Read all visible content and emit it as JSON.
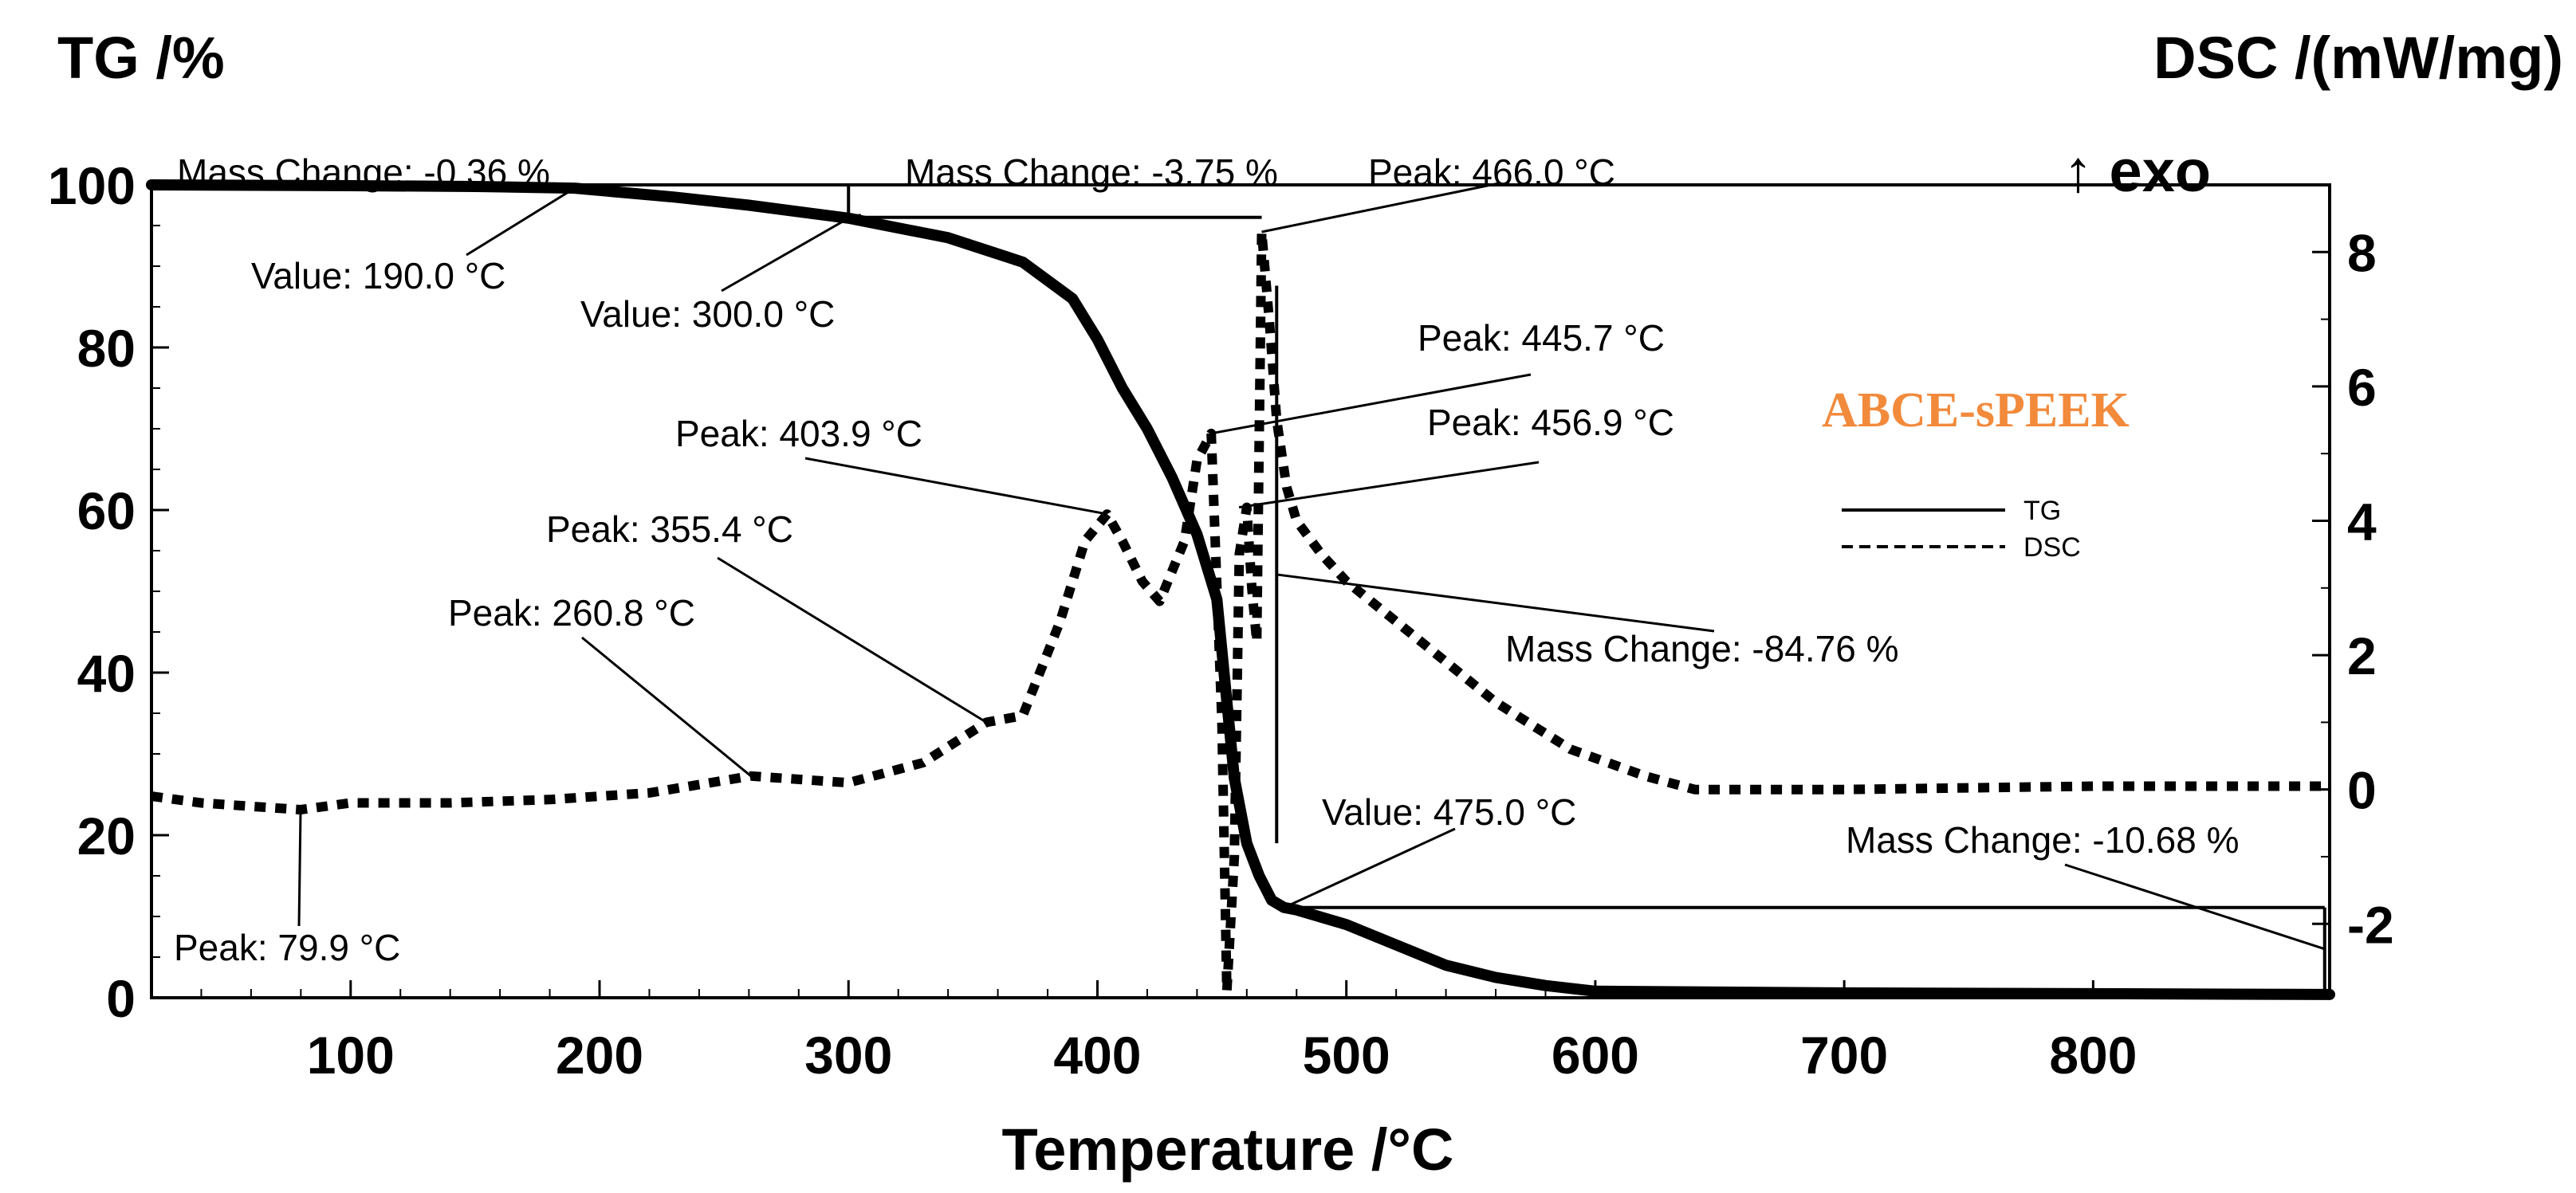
{
  "chart_data": {
    "type": "line",
    "y_left_label": "TG /%",
    "y_right_label": "DSC /(mW/mg)",
    "x_label": "Temperature /°C",
    "exo_label": "↑ exo",
    "sample_label": "ABCE-sPEEK",
    "xlim": [
      20,
      895
    ],
    "ylim_left": [
      0,
      100
    ],
    "ylim_right": [
      -3.1,
      9
    ],
    "x_ticks": [
      100,
      200,
      300,
      400,
      500,
      600,
      700,
      800
    ],
    "y_left_ticks": [
      0,
      20,
      40,
      60,
      80,
      100
    ],
    "y_right_ticks": [
      -2,
      0,
      2,
      4,
      6,
      8
    ],
    "legend": [
      {
        "name": "TG",
        "style": "solid"
      },
      {
        "name": "DSC",
        "style": "dashed"
      }
    ],
    "series": [
      {
        "name": "TG",
        "axis": "left",
        "x": [
          20,
          100,
          150,
          190,
          230,
          260,
          300,
          340,
          370,
          390,
          400,
          410,
          420,
          430,
          440,
          448,
          455,
          460,
          465,
          470,
          475,
          480,
          500,
          520,
          540,
          560,
          580,
          600,
          700,
          800,
          895
        ],
        "y": [
          100,
          99.9,
          99.8,
          99.6,
          98.5,
          97.5,
          95.9,
          93.5,
          90.5,
          86,
          81,
          75,
          70,
          64,
          57,
          49,
          27,
          19,
          15,
          12,
          11.1,
          10.8,
          9,
          6.5,
          4,
          2.5,
          1.5,
          0.8,
          0.6,
          0.5,
          0.4
        ]
      },
      {
        "name": "DSC",
        "axis": "right",
        "x": [
          20,
          40,
          60,
          79.9,
          100,
          140,
          180,
          220,
          260.8,
          300,
          330,
          355.4,
          370,
          385,
          395,
          403.9,
          410,
          418,
          425,
          435,
          440,
          445.7,
          450,
          452,
          455,
          457,
          460,
          462,
          464,
          466,
          469,
          472,
          476,
          480,
          490,
          500,
          530,
          560,
          590,
          620,
          640,
          700,
          800,
          895
        ],
        "y": [
          -0.1,
          -0.2,
          -0.25,
          -0.3,
          -0.2,
          -0.2,
          -0.15,
          -0.05,
          0.2,
          0.1,
          0.4,
          1,
          1.1,
          2.5,
          3.7,
          4.1,
          3.7,
          3.1,
          2.8,
          3.7,
          4.9,
          5.3,
          1,
          -3,
          -1,
          3.5,
          4.2,
          3,
          2.2,
          8.3,
          7,
          5.5,
          4.5,
          4,
          3.5,
          3.1,
          2.2,
          1.3,
          0.6,
          0.2,
          0,
          0,
          0.05,
          0.05
        ]
      }
    ],
    "annotations": [
      {
        "text": "Mass Change: -0.36 %"
      },
      {
        "text": "Value: 190.0 °C"
      },
      {
        "text": "Mass Change: -3.75 %"
      },
      {
        "text": "Value: 300.0 °C"
      },
      {
        "text": "Peak: 466.0 °C"
      },
      {
        "text": "Peak: 445.7 °C"
      },
      {
        "text": "Peak: 456.9 °C"
      },
      {
        "text": "Peak: 403.9 °C"
      },
      {
        "text": "Peak: 355.4 °C"
      },
      {
        "text": "Peak: 260.8 °C"
      },
      {
        "text": "Mass Change: -84.76 %"
      },
      {
        "text": "Value: 475.0 °C"
      },
      {
        "text": "Mass Change: -10.68 %"
      },
      {
        "text": "Peak: 79.9 °C"
      }
    ]
  }
}
